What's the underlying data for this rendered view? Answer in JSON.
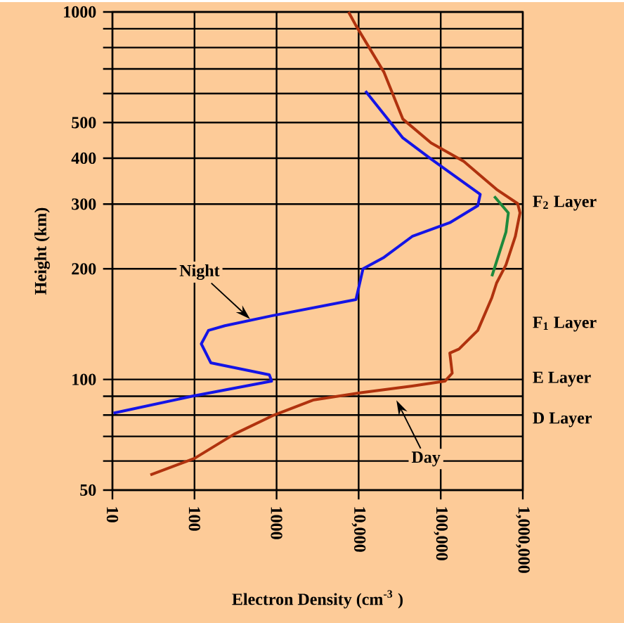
{
  "chart_data": {
    "type": "line",
    "xlabel": "Electron Density (cm$^{-3}$ )",
    "ylabel": "Height (km)",
    "log": "xy",
    "grid": true,
    "marker": "none",
    "line_style": "solid",
    "xlim": [
      10,
      1000000
    ],
    "ylim": [
      50,
      1000
    ],
    "xticks": [
      10,
      100,
      1000,
      {
        "value": 10000,
        "label": "10,000"
      },
      {
        "value": 100000,
        "label": "100,000"
      },
      {
        "value": 1000000,
        "label": "1,000,000"
      }
    ],
    "yticks": [
      50,
      {
        "value": 60,
        "label": null
      },
      {
        "value": 70,
        "label": null
      },
      {
        "value": 80,
        "label": null
      },
      {
        "value": 90,
        "label": null
      },
      100,
      200,
      300,
      400,
      500,
      {
        "value": 600,
        "label": null
      },
      {
        "value": 700,
        "label": null
      },
      {
        "value": 800,
        "label": null
      },
      {
        "value": 900,
        "label": null
      },
      1000
    ],
    "series": [
      {
        "color": "#b0320e",
        "x": [
          29,
          100,
          305,
          930,
          2840,
          10600,
          44900,
          113000,
          138000,
          129000,
          167000,
          283000,
          420000,
          479000,
          624000,
          811000,
          925000,
          866000,
          479000,
          191000,
          76300,
          34600,
          20400,
          9270,
          7530
        ],
        "values": [
          55,
          61,
          71,
          80,
          88,
          92,
          96,
          99,
          104,
          118,
          121,
          136,
          167,
          183,
          205,
          245,
          284,
          301,
          329,
          392,
          440,
          511,
          685,
          918,
          1000
        ]
      },
      {
        "color": "#1414e6",
        "x": [
          10.3,
          93,
          870,
          816,
          158,
          121,
          148,
          234,
          870,
          9270,
          11300,
          20400,
          44900,
          129000,
          283000,
          303000,
          76200,
          34600,
          12100
        ],
        "values": [
          81,
          90,
          99,
          103,
          111,
          125,
          136,
          140,
          149,
          165,
          200,
          215,
          245,
          267,
          297,
          319,
          398,
          454,
          609
        ]
      },
      {
        "color": "#1e8a3c",
        "x": [
          449000,
          667000,
          624000,
          420000
        ],
        "values": [
          315,
          284,
          252,
          191
        ]
      }
    ],
    "annotations": [
      {
        "text": "Night",
        "x": 476,
        "y": 146
      },
      "Day",
      "F$_{2}$ Layer",
      "F$_{1}$ Layer",
      "E Layer",
      "D Layer"
    ]
  }
}
